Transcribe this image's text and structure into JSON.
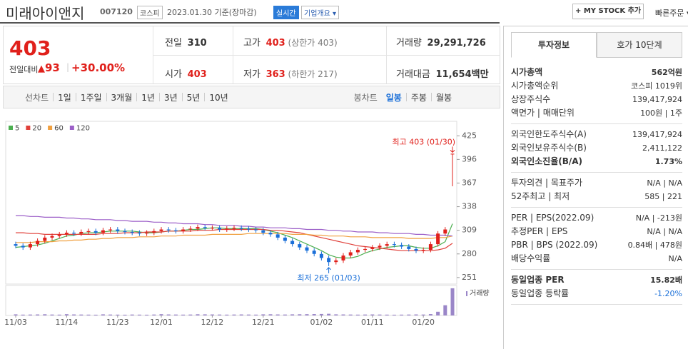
{
  "header": {
    "name": "미래아이앤지",
    "code": "007120",
    "market": "코스피",
    "date": "2023.01.30 기준(장마감)",
    "realtime": "실시간",
    "company_info": "기업개요",
    "my_stock": "+ MY STOCK 추가",
    "quick_order": "빠른주문"
  },
  "price": {
    "current": "403",
    "change_label": "전일대비",
    "change": "93",
    "change_pct": "+30.00%"
  },
  "summary": [
    {
      "label": "전일",
      "value": "310"
    },
    {
      "label": "고가",
      "value": "403",
      "note": "(상한가 403)"
    },
    {
      "label": "거래량",
      "value": "29,291,726"
    },
    {
      "label": "시가",
      "value": "403"
    },
    {
      "label": "저가",
      "value": "363",
      "note": "(하한가 217)"
    },
    {
      "label": "거래대금",
      "value": "11,654",
      "note": "백만"
    }
  ],
  "chart_tabs": {
    "line": "선차트",
    "line_periods": [
      "1일",
      "1주일",
      "3개월",
      "1년",
      "3년",
      "5년",
      "10년"
    ],
    "candle": "봉차트",
    "candle_periods": [
      "일봉",
      "주봉",
      "월봉"
    ]
  },
  "chart_data": {
    "type": "candlestick",
    "categories": [
      "11/03",
      null,
      null,
      null,
      null,
      null,
      null,
      "11/14",
      null,
      null,
      null,
      null,
      null,
      null,
      "11/23",
      null,
      null,
      null,
      null,
      null,
      "12/01",
      null,
      null,
      null,
      null,
      null,
      null,
      "12/12",
      null,
      null,
      null,
      null,
      null,
      null,
      "12/21",
      null,
      null,
      null,
      null,
      null,
      null,
      null,
      "01/02",
      null,
      null,
      null,
      null,
      null,
      null,
      "01/11",
      null,
      null,
      null,
      null,
      null,
      null,
      "01/20",
      null,
      null,
      null,
      null
    ],
    "open": [
      292,
      290,
      288,
      292,
      296,
      300,
      302,
      304,
      306,
      305,
      307,
      308,
      306,
      309,
      310,
      308,
      307,
      306,
      305,
      306,
      308,
      310,
      309,
      308,
      310,
      311,
      313,
      312,
      312,
      310,
      311,
      312,
      311,
      310,
      309,
      306,
      304,
      300,
      296,
      292,
      288,
      284,
      280,
      275,
      270,
      272,
      278,
      282,
      285,
      286,
      288,
      290,
      292,
      291,
      289,
      286,
      284,
      285,
      292,
      305,
      403
    ],
    "high": [
      295,
      293,
      295,
      299,
      303,
      305,
      307,
      309,
      309,
      310,
      311,
      311,
      312,
      313,
      313,
      311,
      310,
      309,
      309,
      311,
      313,
      313,
      312,
      313,
      314,
      316,
      316,
      315,
      315,
      314,
      315,
      315,
      314,
      313,
      312,
      309,
      307,
      303,
      299,
      295,
      291,
      287,
      283,
      278,
      275,
      281,
      285,
      288,
      289,
      291,
      293,
      295,
      295,
      294,
      292,
      289,
      288,
      295,
      308,
      313,
      403
    ],
    "low": [
      287,
      285,
      285,
      289,
      293,
      297,
      299,
      301,
      302,
      302,
      304,
      303,
      303,
      306,
      305,
      304,
      303,
      302,
      302,
      303,
      305,
      306,
      305,
      305,
      307,
      308,
      309,
      309,
      307,
      307,
      308,
      308,
      307,
      306,
      303,
      301,
      297,
      293,
      289,
      285,
      281,
      277,
      272,
      265,
      267,
      269,
      275,
      279,
      282,
      283,
      285,
      287,
      288,
      286,
      283,
      281,
      281,
      282,
      289,
      302,
      363
    ],
    "close": [
      290,
      288,
      292,
      296,
      300,
      302,
      304,
      306,
      305,
      307,
      308,
      306,
      309,
      310,
      308,
      307,
      306,
      305,
      306,
      308,
      310,
      309,
      308,
      310,
      311,
      313,
      312,
      312,
      310,
      311,
      312,
      311,
      310,
      309,
      306,
      304,
      300,
      296,
      292,
      288,
      284,
      280,
      275,
      270,
      272,
      278,
      282,
      285,
      286,
      288,
      290,
      292,
      291,
      289,
      286,
      284,
      285,
      292,
      305,
      310,
      403
    ],
    "up_color": "#e0201b",
    "down_color": "#1a6fd8",
    "series": [
      {
        "name": "5",
        "color": "#4caf50",
        "values": [
          288,
          289,
          290,
          291,
          293,
          296,
          299,
          302,
          303,
          305,
          306,
          306,
          307,
          308,
          308,
          308,
          308,
          307,
          306,
          306,
          307,
          308,
          308,
          309,
          310,
          310,
          311,
          312,
          312,
          311,
          311,
          311,
          311,
          311,
          310,
          308,
          306,
          303,
          300,
          296,
          292,
          288,
          284,
          279,
          276,
          275,
          275,
          277,
          281,
          284,
          286,
          288,
          289,
          290,
          290,
          288,
          287,
          287,
          290,
          295,
          317
        ]
      },
      {
        "name": "20",
        "color": "#e0403a",
        "values": [
          306,
          306,
          305,
          305,
          304,
          304,
          304,
          304,
          304,
          304,
          304,
          304,
          305,
          305,
          305,
          306,
          306,
          306,
          307,
          307,
          307,
          308,
          308,
          308,
          308,
          309,
          309,
          309,
          310,
          310,
          310,
          310,
          310,
          310,
          310,
          309,
          309,
          308,
          307,
          306,
          304,
          302,
          300,
          298,
          296,
          294,
          292,
          290,
          289,
          288,
          287,
          286,
          285,
          284,
          284,
          284,
          284,
          284,
          285,
          287,
          293
        ]
      },
      {
        "name": "60",
        "color": "#f0a040",
        "values": [
          294,
          294,
          294,
          295,
          295,
          295,
          296,
          296,
          297,
          297,
          298,
          298,
          299,
          299,
          300,
          300,
          300,
          301,
          301,
          301,
          302,
          302,
          302,
          303,
          303,
          303,
          303,
          304,
          304,
          304,
          304,
          304,
          305,
          305,
          305,
          305,
          305,
          305,
          304,
          304,
          304,
          303,
          303,
          302,
          302,
          302,
          301,
          301,
          301,
          300,
          300,
          300,
          300,
          300,
          299,
          299,
          299,
          299,
          300,
          300,
          302
        ]
      },
      {
        "name": "120",
        "color": "#9c5fc8",
        "values": [
          327,
          327,
          326,
          326,
          325,
          325,
          325,
          324,
          324,
          323,
          323,
          322,
          322,
          322,
          321,
          321,
          320,
          320,
          320,
          319,
          319,
          318,
          318,
          317,
          317,
          317,
          316,
          316,
          315,
          315,
          315,
          314,
          314,
          313,
          313,
          312,
          312,
          312,
          311,
          311,
          310,
          310,
          310,
          309,
          309,
          308,
          308,
          307,
          307,
          307,
          306,
          306,
          305,
          305,
          305,
          304,
          304,
          303,
          303,
          303,
          302
        ]
      }
    ],
    "volume": [
      1200000,
      900000,
      1000000,
      1100000,
      1300000,
      1000000,
      900000,
      1400000,
      1100000,
      1000000,
      900000,
      800000,
      1200000,
      1000000,
      900000,
      800000,
      1000000,
      900000,
      800000,
      1000000,
      1400000,
      1100000,
      1000000,
      900000,
      1000000,
      1300000,
      1200000,
      1100000,
      1000000,
      900000,
      1000000,
      1100000,
      1000000,
      900000,
      1200000,
      1300000,
      1100000,
      1000000,
      1200000,
      1300000,
      1400000,
      1500000,
      1600000,
      1800000,
      1200000,
      1100000,
      1000000,
      900000,
      1000000,
      1100000,
      1000000,
      900000,
      800000,
      900000,
      1000000,
      1100000,
      1000000,
      1500000,
      4000000,
      11000000,
      29291726
    ],
    "volume_color": "#9a86c8",
    "volume_label": "거래량",
    "vlim": [
      0,
      30000000
    ],
    "ylim": [
      243,
      434
    ],
    "yticks": [
      251,
      280,
      309,
      338,
      367,
      396,
      425
    ],
    "high_label": "최고 403 (01/30)",
    "low_label": "최저 265 (01/03)"
  },
  "info": {
    "tabs": [
      "투자정보",
      "호가 10단계"
    ],
    "groups": [
      [
        {
          "label": "시가총액",
          "value": "562억원"
        },
        {
          "label": "시가총액순위",
          "value": "코스피 1019위"
        },
        {
          "label": "상장주식수",
          "value": "139,417,924"
        },
        {
          "label": "액면가 | 매매단위",
          "value": "100원 | 1주"
        }
      ],
      [
        {
          "label": "외국인한도주식수(A)",
          "value": "139,417,924"
        },
        {
          "label": "외국인보유주식수(B)",
          "value": "2,411,122"
        },
        {
          "label": "외국인소진율(B/A)",
          "value": "1.73%"
        }
      ],
      [
        {
          "label": "투자의견 | 목표주가",
          "value": "N/A | N/A"
        },
        {
          "label": "52주최고 | 최저",
          "value": "585 | 221"
        }
      ],
      [
        {
          "label": "PER | EPS(2022.09)",
          "value": "N/A | -213원"
        },
        {
          "label": "추정PER | EPS",
          "value": "N/A | N/A"
        },
        {
          "label": "PBR | BPS (2022.09)",
          "value": "0.84배 | 478원"
        },
        {
          "label": "배당수익률",
          "value": "N/A"
        }
      ],
      [
        {
          "label": "동일업종 PER",
          "value": "15.82배"
        },
        {
          "label": "동일업종 등락률",
          "value": "-1.20%"
        }
      ]
    ]
  }
}
